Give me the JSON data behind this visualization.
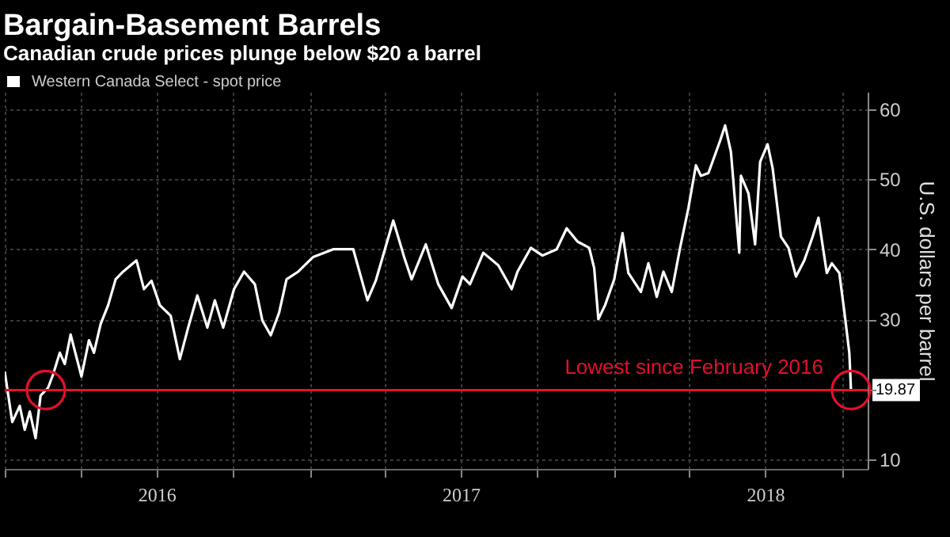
{
  "chart_data": {
    "type": "line",
    "title": "Bargain-Basement Barrels",
    "subtitle": "Canadian crude prices plunge below $20 a barrel",
    "ylabel": "U.S. dollars per barrel",
    "x": [
      "2016-01-01",
      "2016-01-10",
      "2016-01-19",
      "2016-01-25",
      "2016-01-31",
      "2016-02-07",
      "2016-02-13",
      "2016-02-22",
      "2016-02-28",
      "2016-03-07",
      "2016-03-13",
      "2016-03-20",
      "2016-04-02",
      "2016-04-11",
      "2016-04-17",
      "2016-04-25",
      "2016-05-04",
      "2016-05-13",
      "2016-05-22",
      "2016-06-07",
      "2016-06-16",
      "2016-06-25",
      "2016-07-05",
      "2016-07-18",
      "2016-07-29",
      "2016-08-08",
      "2016-08-19",
      "2016-08-31",
      "2016-09-09",
      "2016-09-19",
      "2016-10-02",
      "2016-10-14",
      "2016-10-27",
      "2016-11-05",
      "2016-11-15",
      "2016-11-25",
      "2016-12-04",
      "2016-12-18",
      "2017-01-05",
      "2017-01-29",
      "2017-02-22",
      "2017-03-11",
      "2017-03-21",
      "2017-04-11",
      "2017-04-24",
      "2017-05-03",
      "2017-05-20",
      "2017-06-04",
      "2017-06-20",
      "2017-07-03",
      "2017-07-12",
      "2017-07-28",
      "2017-08-15",
      "2017-08-31",
      "2017-09-07",
      "2017-09-23",
      "2017-10-07",
      "2017-10-24",
      "2017-11-05",
      "2017-11-18",
      "2017-12-02",
      "2017-12-08",
      "2017-12-13",
      "2017-12-21",
      "2018-01-01",
      "2018-01-11",
      "2018-01-18",
      "2018-02-02",
      "2018-02-11",
      "2018-02-21",
      "2018-03-01",
      "2018-03-11",
      "2018-03-21",
      "2018-03-31",
      "2018-04-09",
      "2018-04-15",
      "2018-04-24",
      "2018-05-08",
      "2018-05-14",
      "2018-05-21",
      "2018-05-31",
      "2018-06-02",
      "2018-06-11",
      "2018-06-19",
      "2018-06-25",
      "2018-07-04",
      "2018-07-10",
      "2018-07-20",
      "2018-07-29",
      "2018-08-07",
      "2018-08-17",
      "2018-08-27",
      "2018-09-03",
      "2018-09-13",
      "2018-09-19",
      "2018-09-28",
      "2018-10-04",
      "2018-10-10",
      "2018-10-12"
    ],
    "series": [
      {
        "name": "Western Canada Select - spot price",
        "color": "#ffffff",
        "values": [
          22.5,
          15.3,
          17.6,
          14.2,
          16.8,
          13.0,
          19.1,
          20.2,
          22.1,
          25.2,
          23.6,
          27.8,
          21.8,
          27.0,
          25.2,
          29.3,
          32.0,
          35.7,
          36.8,
          38.4,
          34.3,
          35.5,
          32.0,
          30.5,
          24.3,
          28.8,
          33.4,
          28.8,
          32.7,
          28.8,
          34.3,
          36.8,
          35.0,
          29.8,
          27.7,
          30.9,
          35.7,
          36.8,
          38.9,
          40.0,
          40.0,
          32.7,
          35.5,
          44.1,
          38.9,
          35.7,
          40.7,
          35.0,
          31.6,
          36.1,
          35.0,
          39.5,
          37.7,
          34.3,
          36.8,
          40.2,
          39.1,
          40.0,
          43.0,
          41.1,
          40.2,
          37.3,
          30.0,
          32.0,
          35.7,
          42.3,
          36.6,
          33.9,
          38.0,
          33.2,
          36.8,
          33.9,
          40.2,
          45.9,
          52.0,
          50.5,
          50.9,
          55.5,
          57.7,
          53.9,
          39.5,
          50.5,
          48.0,
          40.7,
          52.5,
          55.0,
          51.6,
          41.8,
          40.2,
          36.1,
          38.4,
          41.8,
          44.5,
          36.6,
          38.0,
          36.6,
          31.1,
          25.2,
          19.87
        ]
      }
    ],
    "xlim": [
      "2016-01-01",
      "2018-11-01"
    ],
    "xticks": [
      {
        "value": "2016-01-01",
        "label": null
      },
      {
        "value": "2016-04-01",
        "label": null
      },
      {
        "value": "2016-07-01",
        "label": "2016"
      },
      {
        "value": "2016-10-01",
        "label": null
      },
      {
        "value": "2017-01-01",
        "label": null
      },
      {
        "value": "2017-04-01",
        "label": null
      },
      {
        "value": "2017-07-01",
        "label": "2017"
      },
      {
        "value": "2017-10-01",
        "label": null
      },
      {
        "value": "2018-01-01",
        "label": null
      },
      {
        "value": "2018-04-01",
        "label": null
      },
      {
        "value": "2018-07-01",
        "label": "2018"
      },
      {
        "value": "2018-10-01",
        "label": null
      }
    ],
    "ylim": [
      8.6,
      62.5
    ],
    "yticks": [
      10,
      {
        "value": 20,
        "label": null
      },
      30,
      40,
      50,
      60
    ],
    "grid": true,
    "legend": "top left",
    "ref_lines": [
      {
        "axis": "y",
        "value": 19.87,
        "label": "Lowest since February 2016",
        "color": "#e3102b"
      }
    ],
    "annotations": [
      {
        "text": "19.87",
        "y": 19.87
      }
    ]
  }
}
